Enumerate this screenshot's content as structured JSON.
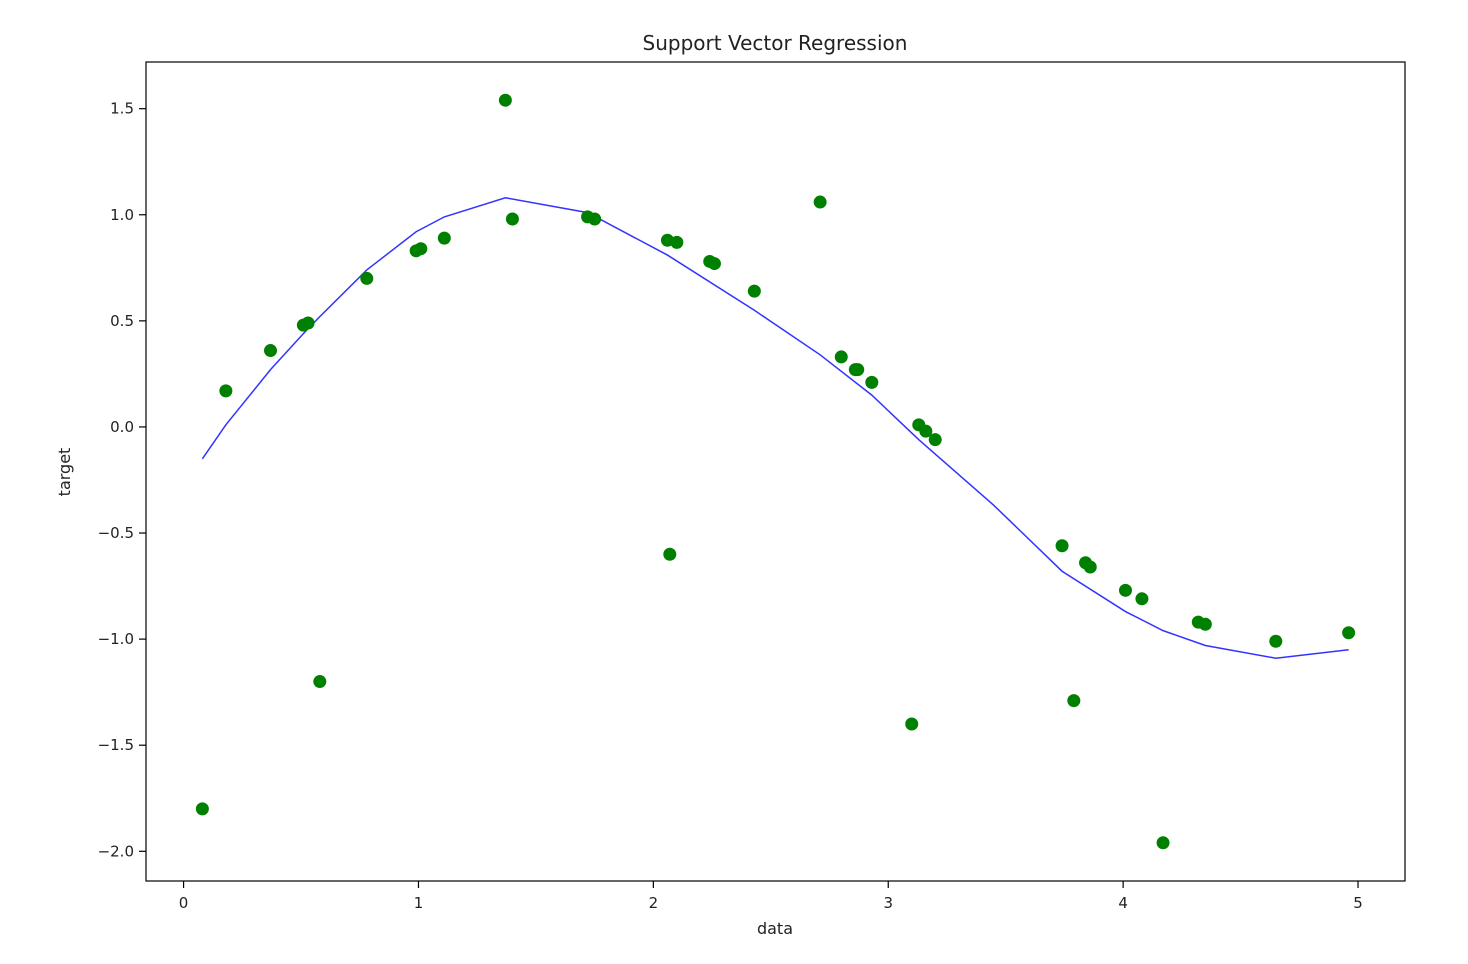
{
  "chart_data": {
    "type": "scatter",
    "title": "Support Vector Regression",
    "xlabel": "data",
    "ylabel": "target",
    "xlim": [
      -0.16,
      5.2
    ],
    "ylim": [
      -2.14,
      1.72
    ],
    "grid": false,
    "x_ticks": [
      0,
      1,
      2,
      3,
      4,
      5
    ],
    "y_ticks": [
      1.5,
      1.0,
      0.5,
      0.0,
      -0.5,
      -1.0,
      -1.5,
      -2.0
    ],
    "x_tick_labels": [
      "0",
      "1",
      "2",
      "3",
      "4",
      "5"
    ],
    "y_tick_labels": [
      "1.5",
      "1.0",
      "0.5",
      "0.0",
      "−0.5",
      "−1.0",
      "−1.5",
      "−2.0"
    ],
    "colors": {
      "points": "#008000",
      "line": "#3333ff",
      "axes": "#000000"
    },
    "series": [
      {
        "type": "scatter",
        "x": [
          0.08,
          0.18,
          0.37,
          0.51,
          0.53,
          0.58,
          0.78,
          0.99,
          1.01,
          1.11,
          1.37,
          1.4,
          1.72,
          1.75,
          2.06,
          2.07,
          2.1,
          2.24,
          2.26,
          2.43,
          2.71,
          2.8,
          2.86,
          2.87,
          2.93,
          3.1,
          3.13,
          3.16,
          3.2,
          3.74,
          3.79,
          3.84,
          3.86,
          4.01,
          4.08,
          4.17,
          4.32,
          4.35,
          4.65,
          4.96
        ],
        "y": [
          -1.8,
          0.17,
          0.36,
          0.48,
          0.49,
          -1.2,
          0.7,
          0.83,
          0.84,
          0.89,
          1.54,
          0.98,
          0.99,
          0.98,
          0.88,
          -0.6,
          0.87,
          0.78,
          0.77,
          0.64,
          1.06,
          0.33,
          0.27,
          0.27,
          0.21,
          -1.4,
          0.01,
          -0.02,
          -0.06,
          -0.56,
          -1.29,
          -0.64,
          -0.66,
          -0.77,
          -0.81,
          -1.96,
          -0.92,
          -0.93,
          -1.01,
          -0.97
        ]
      },
      {
        "type": "line",
        "x": [
          0.08,
          0.18,
          0.37,
          0.51,
          0.58,
          0.78,
          0.99,
          1.11,
          1.37,
          1.72,
          2.06,
          2.43,
          2.71,
          2.93,
          3.13,
          3.45,
          3.74,
          4.01,
          4.17,
          4.35,
          4.65,
          4.96
        ],
        "y": [
          -0.15,
          0.01,
          0.27,
          0.44,
          0.52,
          0.74,
          0.92,
          0.99,
          1.08,
          1.01,
          0.81,
          0.55,
          0.34,
          0.15,
          -0.06,
          -0.37,
          -0.68,
          -0.87,
          -0.96,
          -1.03,
          -1.09,
          -1.05
        ]
      }
    ]
  }
}
